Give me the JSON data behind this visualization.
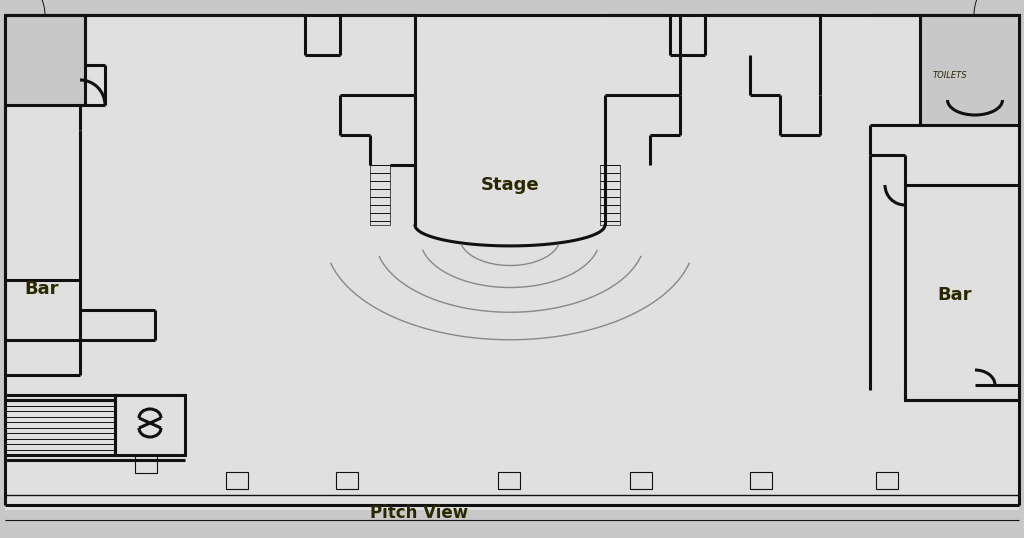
{
  "bg_color": "#c8c8c8",
  "floor_color": "#e0e0e0",
  "wall_color": "#dcdcdc",
  "line_color": "#111111",
  "line_width": 2.2,
  "thin_line": 0.7,
  "wave_color": "#888888",
  "title_stage": "Stage",
  "title_pitch": "Pitch View",
  "title_bar_left": "Bar",
  "title_bar_right": "Bar",
  "title_toilets": "TOILETS",
  "text_color": "#2a2800"
}
